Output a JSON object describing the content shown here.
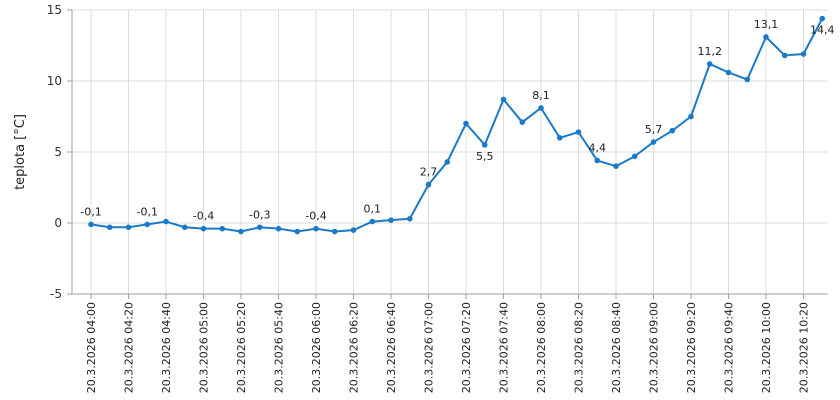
{
  "chart_data": {
    "type": "line",
    "title": "",
    "xlabel": "",
    "ylabel": "teplota [°C]",
    "ylim": [
      -5,
      15
    ],
    "yticks": [
      -5,
      0,
      5,
      10,
      15
    ],
    "grid": true,
    "line_color": "#1a7ac8",
    "x_tick_labels": [
      "20.3.2026 04:00",
      "20.3.2026 04:20",
      "20.3.2026 04:40",
      "20.3.2026 05:00",
      "20.3.2026 05:20",
      "20.3.2026 05:40",
      "20.3.2026 06:00",
      "20.3.2026 06:20",
      "20.3.2026 06:40",
      "20.3.2026 07:00",
      "20.3.2026 07:20",
      "20.3.2026 07:40",
      "20.3.2026 08:00",
      "20.3.2026 08:20",
      "20.3.2026 08:40",
      "20.3.2026 09:00",
      "20.3.2026 09:20",
      "20.3.2026 09:40",
      "20.3.2026 10:00",
      "20.3.2026 10:20"
    ],
    "x_start": "20.3.2026 04:00",
    "x_step_minutes": 10,
    "values": [
      -0.1,
      -0.3,
      -0.3,
      -0.1,
      0.1,
      -0.3,
      -0.4,
      -0.4,
      -0.6,
      -0.3,
      -0.4,
      -0.6,
      -0.4,
      -0.6,
      -0.5,
      0.1,
      0.2,
      0.3,
      2.7,
      4.3,
      7.0,
      5.5,
      8.7,
      7.1,
      8.1,
      6.0,
      6.4,
      4.4,
      4.0,
      4.7,
      5.7,
      6.5,
      7.5,
      11.2,
      10.6,
      10.1,
      13.1,
      11.8,
      11.9,
      14.4
    ],
    "data_labels": [
      {
        "index": 0,
        "text": "-0,1",
        "position": "above"
      },
      {
        "index": 3,
        "text": "-0,1",
        "position": "above"
      },
      {
        "index": 6,
        "text": "-0,4",
        "position": "above"
      },
      {
        "index": 9,
        "text": "-0,3",
        "position": "above"
      },
      {
        "index": 12,
        "text": "-0,4",
        "position": "above"
      },
      {
        "index": 15,
        "text": "0,1",
        "position": "above"
      },
      {
        "index": 18,
        "text": "2,7",
        "position": "above"
      },
      {
        "index": 21,
        "text": "5,5",
        "position": "below"
      },
      {
        "index": 24,
        "text": "8,1",
        "position": "above"
      },
      {
        "index": 27,
        "text": "4,4",
        "position": "above"
      },
      {
        "index": 30,
        "text": "5,7",
        "position": "above"
      },
      {
        "index": 33,
        "text": "11,2",
        "position": "above"
      },
      {
        "index": 36,
        "text": "13,1",
        "position": "above"
      },
      {
        "index": 39,
        "text": "14,4",
        "position": "below"
      }
    ]
  }
}
